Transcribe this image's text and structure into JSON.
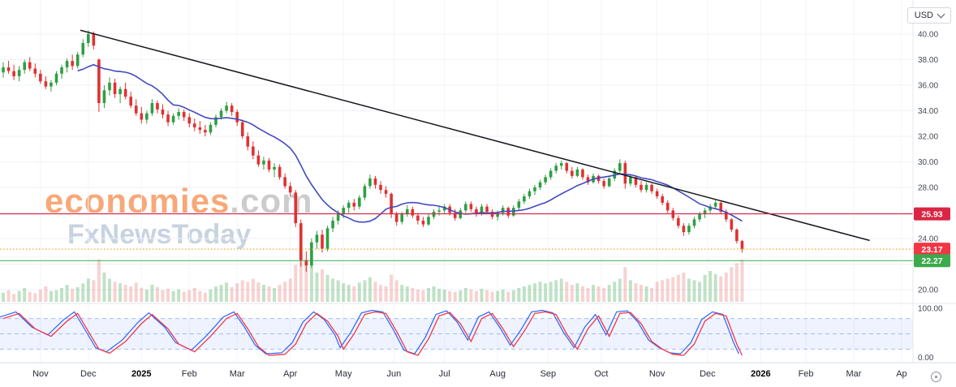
{
  "toolbar": {
    "currency": "USD"
  },
  "watermark": {
    "brand": "economies",
    "domain": ".com",
    "subbrand": "FxNewsToday"
  },
  "chart_data": {
    "type": "candlestick",
    "x_labels": [
      {
        "label": "Nov",
        "i": 7
      },
      {
        "label": "Dec",
        "i": 16
      },
      {
        "label": "2025",
        "i": 26,
        "bold": true
      },
      {
        "label": "Feb",
        "i": 35
      },
      {
        "label": "Mar",
        "i": 44
      },
      {
        "label": "Apr",
        "i": 54
      },
      {
        "label": "May",
        "i": 64
      },
      {
        "label": "Jun",
        "i": 73.5
      },
      {
        "label": "Jul",
        "i": 83
      },
      {
        "label": "Aug",
        "i": 93
      },
      {
        "label": "Sep",
        "i": 102.5
      },
      {
        "label": "Oct",
        "i": 112.5
      },
      {
        "label": "Nov",
        "i": 123
      },
      {
        "label": "Dec",
        "i": 132.5
      },
      {
        "label": "2026",
        "i": 142.5,
        "bold": true
      },
      {
        "label": "Feb",
        "i": 151
      },
      {
        "label": "Mar",
        "i": 160
      },
      {
        "label": "Ap",
        "i": 169
      }
    ],
    "price_pane": {
      "ylim": [
        19.0,
        42.0
      ],
      "y_ticks": [
        "40.00",
        "38.00",
        "36.00",
        "34.00",
        "32.00",
        "30.00",
        "28.00",
        "26.00",
        "24.00",
        "22.00",
        "20.00"
      ],
      "ma_window": 15,
      "colors": {
        "up": "#2f9e44",
        "down": "#e03131",
        "ma": "#4149c0",
        "trend": "#16181d"
      },
      "trendline": {
        "x1_i": 14.5,
        "p1": 40.3,
        "x2_i": 163,
        "p2": 23.85
      },
      "hlines": [
        {
          "value": 25.93,
          "label": "25.93",
          "line_color": "#d92644",
          "badge_color": "#d92644",
          "style": "solid"
        },
        {
          "value": 23.17,
          "label": "23.17",
          "line_color": "#ff9800",
          "badge_color": "#f23645",
          "style": "dotted"
        },
        {
          "value": 22.27,
          "label": "22.27",
          "line_color": "#3da94c",
          "badge_color": "#3da94c",
          "style": "solid"
        }
      ],
      "candles": [
        [
          37.0,
          37.8,
          36.6,
          37.4
        ],
        [
          37.4,
          37.9,
          36.9,
          37.1
        ],
        [
          37.1,
          37.6,
          36.4,
          36.7
        ],
        [
          36.7,
          37.5,
          36.3,
          37.2
        ],
        [
          37.2,
          38.0,
          36.9,
          37.8
        ],
        [
          37.8,
          38.2,
          37.1,
          37.3
        ],
        [
          37.3,
          37.7,
          36.6,
          36.9
        ],
        [
          36.9,
          37.2,
          36.1,
          36.3
        ],
        [
          36.3,
          36.7,
          35.7,
          35.9
        ],
        [
          35.9,
          36.4,
          35.5,
          36.2
        ],
        [
          36.2,
          37.1,
          36.0,
          36.9
        ],
        [
          36.9,
          37.6,
          36.5,
          37.4
        ],
        [
          37.4,
          38.1,
          37.0,
          37.9
        ],
        [
          37.9,
          38.4,
          37.2,
          37.5
        ],
        [
          37.5,
          38.6,
          37.3,
          38.4
        ],
        [
          38.4,
          39.6,
          38.2,
          39.3
        ],
        [
          39.3,
          40.3,
          39.0,
          40.0
        ],
        [
          40.0,
          40.2,
          38.8,
          39.1
        ],
        [
          38.0,
          38.1,
          33.9,
          34.6
        ],
        [
          34.6,
          36.0,
          34.2,
          35.6
        ],
        [
          35.6,
          36.6,
          35.2,
          36.2
        ],
        [
          36.2,
          36.5,
          35.0,
          35.3
        ],
        [
          35.3,
          35.9,
          34.6,
          35.7
        ],
        [
          35.7,
          36.2,
          34.9,
          35.1
        ],
        [
          35.1,
          35.5,
          34.2,
          34.4
        ],
        [
          34.4,
          34.9,
          33.6,
          33.8
        ],
        [
          33.8,
          34.3,
          33.0,
          33.3
        ],
        [
          33.3,
          34.0,
          33.0,
          33.8
        ],
        [
          33.8,
          34.9,
          33.6,
          34.6
        ],
        [
          34.6,
          34.8,
          33.8,
          34.1
        ],
        [
          34.1,
          34.5,
          33.4,
          33.7
        ],
        [
          33.7,
          34.0,
          32.8,
          33.1
        ],
        [
          33.1,
          33.8,
          32.9,
          33.6
        ],
        [
          33.6,
          34.2,
          33.3,
          33.9
        ],
        [
          33.9,
          34.1,
          33.2,
          33.5
        ],
        [
          33.5,
          33.8,
          32.7,
          33.0
        ],
        [
          33.0,
          33.4,
          32.4,
          32.7
        ],
        [
          32.7,
          33.2,
          32.2,
          32.5
        ],
        [
          32.5,
          32.9,
          32.0,
          32.3
        ],
        [
          32.3,
          33.1,
          32.1,
          32.9
        ],
        [
          32.9,
          33.7,
          32.7,
          33.5
        ],
        [
          33.5,
          34.2,
          33.3,
          34.0
        ],
        [
          34.0,
          34.7,
          33.8,
          34.4
        ],
        [
          34.4,
          34.6,
          33.6,
          33.9
        ],
        [
          33.9,
          34.1,
          32.8,
          33.1
        ],
        [
          33.1,
          33.3,
          31.8,
          32.0
        ],
        [
          32.0,
          32.3,
          30.9,
          31.2
        ],
        [
          31.2,
          31.6,
          30.2,
          30.5
        ],
        [
          30.5,
          30.9,
          29.6,
          29.8
        ],
        [
          29.8,
          30.4,
          29.4,
          30.1
        ],
        [
          30.1,
          30.3,
          29.2,
          29.4
        ],
        [
          29.4,
          29.9,
          28.8,
          29.6
        ],
        [
          29.6,
          29.8,
          28.6,
          28.8
        ],
        [
          28.8,
          29.1,
          27.9,
          28.1
        ],
        [
          28.1,
          28.4,
          27.3,
          27.6
        ],
        [
          27.6,
          27.8,
          24.9,
          25.2
        ],
        [
          25.2,
          25.5,
          21.8,
          22.3
        ],
        [
          22.3,
          23.0,
          21.4,
          21.9
        ],
        [
          21.9,
          24.0,
          21.7,
          23.7
        ],
        [
          23.7,
          24.6,
          23.2,
          24.3
        ],
        [
          24.3,
          24.7,
          22.9,
          23.2
        ],
        [
          23.2,
          25.0,
          23.0,
          24.8
        ],
        [
          24.8,
          25.7,
          24.5,
          25.4
        ],
        [
          25.4,
          26.2,
          25.1,
          25.9
        ],
        [
          25.9,
          26.6,
          25.6,
          26.4
        ],
        [
          26.4,
          27.0,
          26.0,
          26.8
        ],
        [
          26.8,
          27.1,
          26.2,
          26.5
        ],
        [
          26.5,
          27.4,
          26.3,
          27.2
        ],
        [
          27.2,
          28.3,
          27.0,
          28.1
        ],
        [
          28.1,
          29.0,
          27.9,
          28.7
        ],
        [
          28.7,
          28.9,
          27.9,
          28.2
        ],
        [
          28.2,
          28.5,
          27.5,
          27.8
        ],
        [
          27.8,
          28.1,
          27.2,
          27.5
        ],
        [
          27.5,
          27.6,
          25.6,
          25.9
        ],
        [
          25.9,
          26.1,
          25.0,
          25.3
        ],
        [
          25.3,
          26.1,
          25.1,
          25.9
        ],
        [
          25.9,
          26.6,
          25.7,
          26.3
        ],
        [
          26.3,
          26.5,
          25.6,
          25.8
        ],
        [
          25.8,
          26.0,
          25.1,
          25.4
        ],
        [
          25.4,
          25.7,
          24.9,
          25.1
        ],
        [
          25.1,
          25.9,
          25.0,
          25.7
        ],
        [
          25.7,
          26.3,
          25.5,
          26.1
        ],
        [
          26.1,
          26.5,
          25.8,
          26.2
        ],
        [
          26.2,
          26.7,
          25.9,
          26.5
        ],
        [
          26.5,
          26.7,
          25.8,
          26.0
        ],
        [
          26.0,
          26.3,
          25.4,
          25.6
        ],
        [
          25.6,
          26.4,
          25.5,
          26.2
        ],
        [
          26.2,
          26.9,
          26.0,
          26.7
        ],
        [
          26.7,
          26.9,
          26.1,
          26.3
        ],
        [
          26.3,
          26.5,
          25.7,
          25.9
        ],
        [
          25.9,
          26.7,
          25.8,
          26.5
        ],
        [
          26.5,
          26.7,
          25.9,
          26.1
        ],
        [
          26.1,
          26.3,
          25.5,
          25.7
        ],
        [
          25.7,
          26.2,
          25.4,
          26.0
        ],
        [
          26.0,
          26.6,
          25.8,
          26.4
        ],
        [
          26.4,
          26.5,
          25.6,
          25.8
        ],
        [
          25.8,
          26.6,
          25.7,
          26.4
        ],
        [
          26.4,
          27.1,
          26.2,
          26.9
        ],
        [
          26.9,
          27.5,
          26.7,
          27.3
        ],
        [
          27.3,
          27.9,
          27.1,
          27.7
        ],
        [
          27.7,
          28.2,
          27.4,
          28.0
        ],
        [
          28.0,
          28.6,
          27.8,
          28.4
        ],
        [
          28.4,
          29.0,
          28.2,
          28.8
        ],
        [
          28.8,
          29.5,
          28.6,
          29.3
        ],
        [
          29.3,
          29.9,
          29.1,
          29.7
        ],
        [
          29.7,
          30.1,
          29.4,
          29.9
        ],
        [
          29.9,
          30.0,
          29.1,
          29.3
        ],
        [
          29.3,
          29.6,
          28.7,
          28.9
        ],
        [
          28.9,
          29.6,
          28.8,
          29.4
        ],
        [
          29.4,
          29.5,
          28.6,
          28.8
        ],
        [
          28.8,
          29.0,
          28.2,
          28.4
        ],
        [
          28.4,
          29.1,
          28.3,
          28.9
        ],
        [
          28.9,
          29.0,
          28.3,
          28.5
        ],
        [
          28.5,
          28.7,
          27.9,
          28.1
        ],
        [
          28.1,
          28.9,
          28.0,
          28.7
        ],
        [
          28.7,
          29.5,
          28.5,
          29.3
        ],
        [
          29.3,
          30.2,
          29.1,
          29.9
        ],
        [
          29.9,
          30.1,
          27.9,
          28.3
        ],
        [
          28.3,
          29.0,
          28.1,
          28.8
        ],
        [
          28.8,
          28.9,
          28.0,
          28.2
        ],
        [
          28.2,
          28.5,
          27.6,
          27.8
        ],
        [
          27.8,
          28.4,
          27.6,
          28.2
        ],
        [
          28.2,
          28.3,
          27.5,
          27.7
        ],
        [
          27.7,
          27.9,
          27.1,
          27.3
        ],
        [
          27.3,
          27.5,
          26.6,
          26.8
        ],
        [
          26.8,
          27.0,
          26.0,
          26.2
        ],
        [
          26.2,
          26.4,
          25.4,
          25.6
        ],
        [
          25.6,
          25.8,
          24.8,
          25.0
        ],
        [
          25.0,
          25.2,
          24.2,
          24.5
        ],
        [
          24.5,
          25.2,
          24.3,
          25.0
        ],
        [
          25.0,
          25.7,
          24.8,
          25.5
        ],
        [
          25.5,
          26.1,
          25.3,
          25.9
        ],
        [
          25.9,
          26.4,
          25.6,
          26.2
        ],
        [
          26.2,
          26.7,
          26.0,
          26.5
        ],
        [
          26.5,
          27.0,
          26.3,
          26.8
        ],
        [
          26.8,
          26.9,
          25.9,
          26.1
        ],
        [
          26.1,
          26.3,
          25.3,
          25.5
        ],
        [
          25.5,
          25.6,
          24.5,
          24.7
        ],
        [
          24.7,
          24.8,
          23.6,
          23.8
        ],
        [
          23.8,
          23.9,
          22.9,
          23.2
        ]
      ],
      "volumes": [
        12,
        15,
        10,
        14,
        18,
        13,
        11,
        16,
        20,
        14,
        15,
        18,
        22,
        17,
        19,
        24,
        30,
        28,
        55,
        38,
        30,
        26,
        24,
        22,
        20,
        25,
        18,
        16,
        22,
        19,
        15,
        17,
        14,
        16,
        13,
        15,
        18,
        14,
        12,
        16,
        20,
        22,
        25,
        19,
        24,
        28,
        26,
        30,
        25,
        22,
        20,
        18,
        22,
        26,
        30,
        48,
        62,
        55,
        50,
        38,
        42,
        35,
        30,
        28,
        24,
        22,
        20,
        25,
        28,
        32,
        26,
        22,
        20,
        35,
        28,
        22,
        20,
        18,
        16,
        15,
        18,
        20,
        17,
        16,
        14,
        13,
        15,
        18,
        16,
        14,
        17,
        15,
        13,
        14,
        16,
        13,
        15,
        18,
        20,
        22,
        24,
        26,
        24,
        26,
        28,
        30,
        26,
        22,
        24,
        20,
        18,
        22,
        20,
        18,
        22,
        26,
        30,
        45,
        28,
        24,
        22,
        20,
        18,
        26,
        28,
        30,
        32,
        35,
        38,
        30,
        28,
        26,
        35,
        40,
        36,
        33,
        38,
        45,
        50,
        55
      ]
    },
    "indicator_pane": {
      "type": "stochastic",
      "range": [
        0,
        100
      ],
      "ticks": [
        {
          "label": "100.00",
          "v": 100
        },
        {
          "label": "0.00",
          "v": 0
        }
      ],
      "band": [
        20,
        80
      ],
      "mid": 50,
      "colors": {
        "k": "#2962ff",
        "d": "#f23645",
        "band": "rgba(41,98,255,0.08)",
        "dash": "rgba(41,98,255,0.40)"
      },
      "k_points": [
        [
          0,
          80
        ],
        [
          3,
          90
        ],
        [
          6,
          60
        ],
        [
          9,
          45
        ],
        [
          12,
          75
        ],
        [
          14,
          90
        ],
        [
          16,
          55
        ],
        [
          18,
          20
        ],
        [
          20,
          12
        ],
        [
          23,
          35
        ],
        [
          26,
          70
        ],
        [
          28,
          88
        ],
        [
          31,
          60
        ],
        [
          33,
          30
        ],
        [
          36,
          15
        ],
        [
          39,
          45
        ],
        [
          42,
          80
        ],
        [
          44,
          90
        ],
        [
          46,
          60
        ],
        [
          48,
          25
        ],
        [
          50,
          8
        ],
        [
          53,
          10
        ],
        [
          55,
          30
        ],
        [
          57,
          70
        ],
        [
          59,
          90
        ],
        [
          61,
          75
        ],
        [
          63,
          45
        ],
        [
          64,
          20
        ],
        [
          66,
          50
        ],
        [
          68,
          88
        ],
        [
          70,
          93
        ],
        [
          72,
          90
        ],
        [
          74,
          55
        ],
        [
          76,
          15
        ],
        [
          78,
          8
        ],
        [
          80,
          40
        ],
        [
          82,
          85
        ],
        [
          84,
          92
        ],
        [
          86,
          70
        ],
        [
          88,
          35
        ],
        [
          90,
          80
        ],
        [
          92,
          90
        ],
        [
          94,
          60
        ],
        [
          96,
          25
        ],
        [
          98,
          55
        ],
        [
          100,
          90
        ],
        [
          102,
          93
        ],
        [
          104,
          88
        ],
        [
          106,
          50
        ],
        [
          108,
          20
        ],
        [
          110,
          60
        ],
        [
          112,
          85
        ],
        [
          114,
          45
        ],
        [
          116,
          90
        ],
        [
          118,
          92
        ],
        [
          120,
          70
        ],
        [
          122,
          35
        ],
        [
          124,
          20
        ],
        [
          126,
          10
        ],
        [
          128,
          8
        ],
        [
          130,
          30
        ],
        [
          132,
          75
        ],
        [
          134,
          90
        ],
        [
          136,
          85
        ],
        [
          138,
          30
        ],
        [
          139,
          8
        ]
      ]
    }
  }
}
